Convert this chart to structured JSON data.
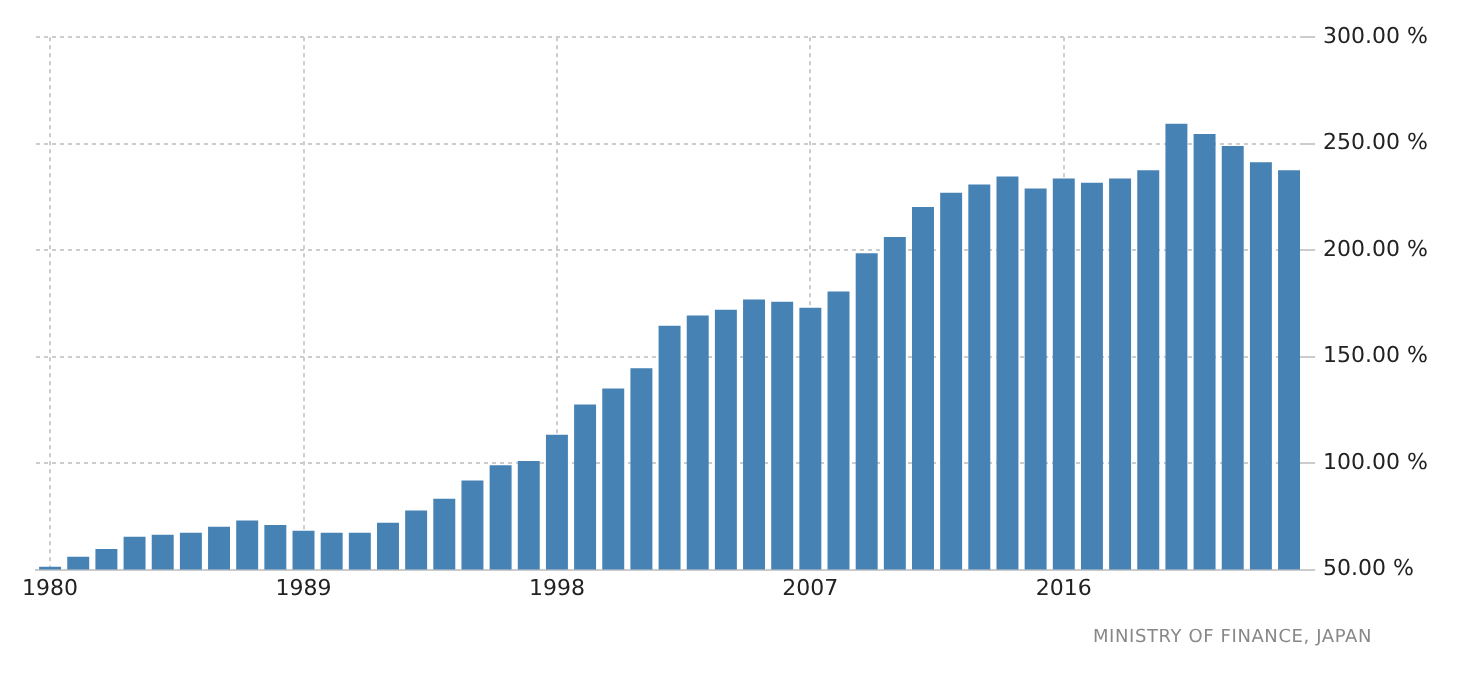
{
  "chart_data": {
    "type": "bar",
    "categories": [
      "1980",
      null,
      null,
      null,
      null,
      null,
      null,
      null,
      null,
      "1989",
      null,
      null,
      null,
      null,
      null,
      null,
      null,
      null,
      "1998",
      null,
      null,
      null,
      null,
      null,
      null,
      null,
      null,
      "2007",
      null,
      null,
      null,
      null,
      null,
      null,
      null,
      null,
      "2016",
      null,
      null,
      null,
      null,
      null,
      null,
      null,
      null
    ],
    "values": [
      51.3,
      56,
      59.7,
      65.4,
      66.4,
      67.3,
      70.1,
      73,
      71,
      68.2,
      67.3,
      67.3,
      72,
      77.7,
      83.3,
      91.8,
      99,
      101,
      113.3,
      127.5,
      135,
      144.6,
      164.5,
      169.3,
      172,
      176.8,
      175.8,
      173,
      180.6,
      198.6,
      206.2,
      220.3,
      227,
      230.8,
      234.6,
      228.9,
      233.7,
      231.7,
      233.7,
      237.5,
      259.4,
      254.6,
      248.9,
      241.3,
      237.5
    ],
    "color": "#4682b4",
    "ylim": [
      50,
      300
    ],
    "yticks": [
      {
        "value": 50,
        "label": "50.00 %"
      },
      {
        "value": 100,
        "label": "100.00 %"
      },
      {
        "value": 150,
        "label": "150.00 %"
      },
      {
        "value": 200,
        "label": "200.00 %"
      },
      {
        "value": 250,
        "label": "250.00 %"
      },
      {
        "value": 300,
        "label": "300.00 %"
      }
    ],
    "grid": true,
    "annotations": [
      "MINISTRY OF FINANCE, JAPAN"
    ]
  }
}
